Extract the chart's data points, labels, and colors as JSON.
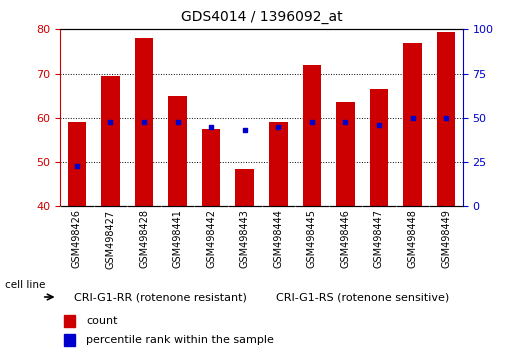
{
  "title": "GDS4014 / 1396092_at",
  "categories": [
    "GSM498426",
    "GSM498427",
    "GSM498428",
    "GSM498441",
    "GSM498442",
    "GSM498443",
    "GSM498444",
    "GSM498445",
    "GSM498446",
    "GSM498447",
    "GSM498448",
    "GSM498449"
  ],
  "counts": [
    59.0,
    69.5,
    78.0,
    65.0,
    57.5,
    48.5,
    59.0,
    72.0,
    63.5,
    66.5,
    77.0,
    79.5
  ],
  "percentile_ranks": [
    23.0,
    47.5,
    47.5,
    47.5,
    45.0,
    43.0,
    45.0,
    47.5,
    47.5,
    46.0,
    50.0,
    50.0
  ],
  "bar_color": "#cc0000",
  "dot_color": "#0000cc",
  "ylim_left": [
    40,
    80
  ],
  "ylim_right": [
    0,
    100
  ],
  "yticks_left": [
    40,
    50,
    60,
    70,
    80
  ],
  "yticks_right": [
    0,
    25,
    50,
    75,
    100
  ],
  "group1_label": "CRI-G1-RR (rotenone resistant)",
  "group2_label": "CRI-G1-RS (rotenone sensitive)",
  "group1_count": 6,
  "group2_count": 6,
  "cell_line_label": "cell line",
  "legend_count_label": "count",
  "legend_pct_label": "percentile rank within the sample",
  "group_bg_color": "#88ee88",
  "xticklabel_bg": "#cccccc",
  "plot_bg": "#ffffff",
  "title_color": "#000000",
  "left_axis_color": "#cc0000",
  "right_axis_color": "#0000cc",
  "bar_width": 0.55
}
